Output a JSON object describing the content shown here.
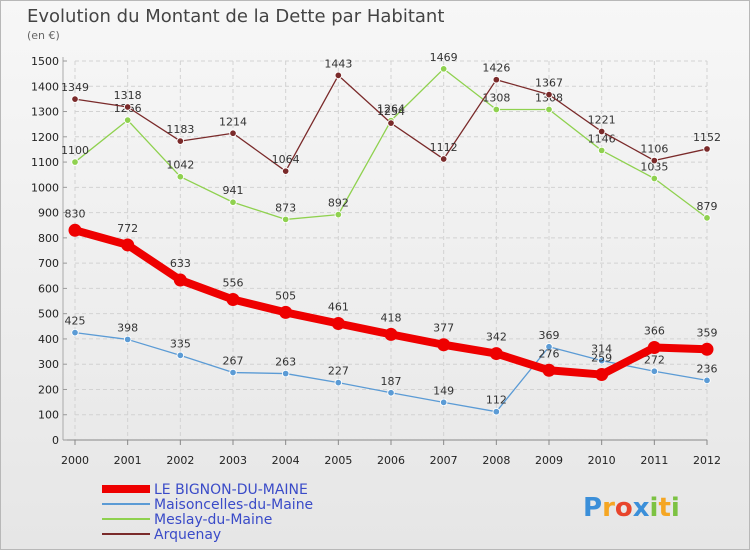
{
  "chart_data": {
    "type": "line",
    "title": "Evolution du Montant de la Dette par Habitant",
    "subtitle": "(en €)",
    "x": [
      "2000",
      "2001",
      "2002",
      "2003",
      "2004",
      "2005",
      "2006",
      "2007",
      "2008",
      "2009",
      "2010",
      "2011",
      "2012"
    ],
    "ylim": [
      0,
      1500
    ],
    "yticks": [
      0,
      100,
      200,
      300,
      400,
      500,
      600,
      700,
      800,
      900,
      1000,
      1100,
      1200,
      1300,
      1400,
      1500
    ],
    "grid": true,
    "legend_position": "bottom-left",
    "series": [
      {
        "name": "LE BIGNON-DU-MAINE",
        "color": "#ee0000",
        "values": [
          830,
          772,
          633,
          556,
          505,
          461,
          418,
          377,
          342,
          276,
          259,
          366,
          359
        ]
      },
      {
        "name": "Maisoncelles-du-Maine",
        "color": "#5b9bd5",
        "values": [
          425,
          398,
          335,
          267,
          263,
          227,
          187,
          149,
          112,
          369,
          314,
          272,
          236
        ]
      },
      {
        "name": "Meslay-du-Maine",
        "color": "#8fd14f",
        "values": [
          1100,
          1266,
          1042,
          941,
          873,
          892,
          1264,
          1469,
          1308,
          1308,
          1146,
          1035,
          879
        ]
      },
      {
        "name": "Arquenay",
        "color": "#7a2a2a",
        "values": [
          1349,
          1318,
          1183,
          1214,
          1064,
          1443,
          1254,
          1112,
          1426,
          1367,
          1221,
          1106,
          1152
        ]
      }
    ]
  },
  "logo": {
    "text": "Proxiti"
  }
}
